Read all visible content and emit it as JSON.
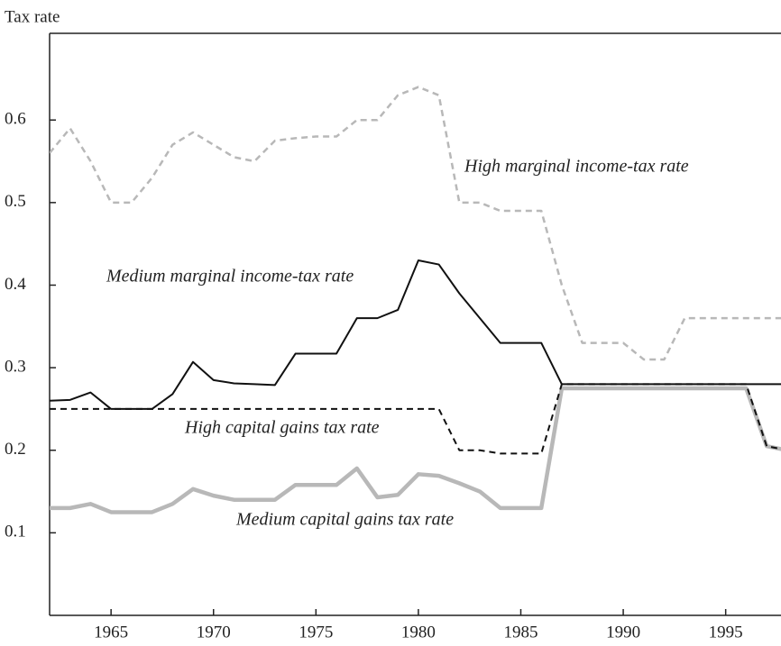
{
  "chart_data": {
    "type": "line",
    "y_label": "Tax rate",
    "x": [
      1962,
      1963,
      1964,
      1965,
      1966,
      1967,
      1968,
      1969,
      1970,
      1971,
      1972,
      1973,
      1974,
      1975,
      1976,
      1977,
      1978,
      1979,
      1980,
      1981,
      1982,
      1983,
      1984,
      1985,
      1986,
      1987,
      1988,
      1989,
      1990,
      1991,
      1992,
      1993,
      1994,
      1995,
      1996,
      1997,
      1998
    ],
    "xlim": [
      1962,
      1997.7
    ],
    "xticks": [
      1965,
      1970,
      1975,
      1980,
      1985,
      1990,
      1995
    ],
    "ylim": [
      0,
      0.705
    ],
    "yticks": [
      0.1,
      0.2,
      0.3,
      0.4,
      0.5,
      0.6
    ],
    "series": [
      {
        "name": "High marginal income-tax rate",
        "color": "#b8b8b8",
        "dashed": true,
        "width": 2.5,
        "values": [
          0.56,
          0.59,
          0.55,
          0.5,
          0.5,
          0.53,
          0.57,
          0.585,
          0.57,
          0.555,
          0.55,
          0.575,
          0.578,
          0.58,
          0.58,
          0.6,
          0.6,
          0.63,
          0.64,
          0.63,
          0.5,
          0.5,
          0.49,
          0.49,
          0.49,
          0.4,
          0.33,
          0.33,
          0.33,
          0.31,
          0.31,
          0.36,
          0.36,
          0.36,
          0.36,
          0.36,
          0.36
        ]
      },
      {
        "name": "Medium marginal income-tax rate",
        "color": "#111111",
        "dashed": false,
        "width": 2,
        "values": [
          0.26,
          0.261,
          0.27,
          0.25,
          0.25,
          0.25,
          0.268,
          0.307,
          0.285,
          0.281,
          0.28,
          0.279,
          0.317,
          0.317,
          0.317,
          0.36,
          0.36,
          0.37,
          0.43,
          0.425,
          0.39,
          0.36,
          0.33,
          0.33,
          0.33,
          0.28,
          0.28,
          0.28,
          0.28,
          0.28,
          0.28,
          0.28,
          0.28,
          0.28,
          0.28,
          0.28,
          0.28
        ]
      },
      {
        "name": "Medium capital gains tax rate",
        "color": "#b8b8b8",
        "dashed": false,
        "width": 4.5,
        "values": [
          0.13,
          0.13,
          0.135,
          0.125,
          0.125,
          0.125,
          0.135,
          0.153,
          0.145,
          0.14,
          0.14,
          0.14,
          0.158,
          0.158,
          0.158,
          0.178,
          0.143,
          0.146,
          0.171,
          0.169,
          0.16,
          0.15,
          0.13,
          0.13,
          0.13,
          0.275,
          0.275,
          0.275,
          0.275,
          0.275,
          0.275,
          0.275,
          0.275,
          0.275,
          0.275,
          0.205,
          0.2
        ]
      },
      {
        "name": "High capital gains tax rate",
        "color": "#111111",
        "dashed": true,
        "width": 2,
        "values": [
          0.25,
          0.25,
          0.25,
          0.25,
          0.25,
          0.25,
          0.25,
          0.25,
          0.25,
          0.25,
          0.25,
          0.25,
          0.25,
          0.25,
          0.25,
          0.25,
          0.25,
          0.25,
          0.25,
          0.25,
          0.2,
          0.2,
          0.196,
          0.196,
          0.196,
          0.28,
          0.28,
          0.28,
          0.28,
          0.28,
          0.28,
          0.28,
          0.28,
          0.28,
          0.28,
          0.205,
          0.2
        ]
      }
    ]
  }
}
